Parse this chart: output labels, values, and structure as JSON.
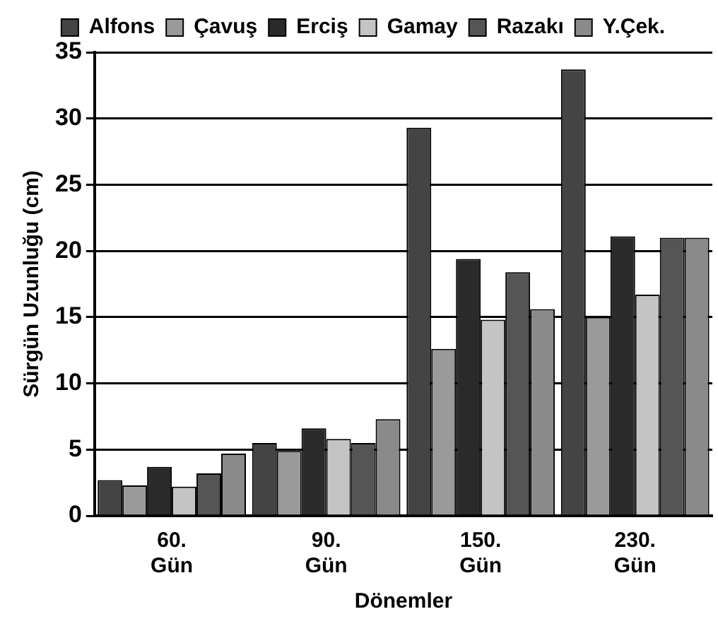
{
  "chart_data": {
    "type": "bar",
    "xlabel": "Dönemler",
    "ylabel": "Sürgün Uzunluğu (cm)",
    "categories": [
      "60. Gün",
      "90. Gün",
      "150. Gün",
      "230. Gün"
    ],
    "series": [
      {
        "name": "Alfons",
        "color": "#444444",
        "values": [
          2.7,
          5.5,
          29.3,
          33.7
        ]
      },
      {
        "name": "Çavuş",
        "color": "#9a9a9a",
        "values": [
          2.3,
          4.9,
          12.6,
          15.0
        ]
      },
      {
        "name": "Erciş",
        "color": "#2a2a2a",
        "values": [
          3.7,
          6.6,
          19.4,
          21.1
        ]
      },
      {
        "name": "Gamay",
        "color": "#c4c4c4",
        "values": [
          2.2,
          5.8,
          14.8,
          16.7
        ]
      },
      {
        "name": "Razakı",
        "color": "#555555",
        "values": [
          3.2,
          5.5,
          18.4,
          21.0
        ]
      },
      {
        "name": "Y.Çek.",
        "color": "#8a8a8a",
        "values": [
          4.7,
          7.3,
          15.6,
          21.0
        ]
      }
    ],
    "ylim": [
      0,
      35
    ],
    "yticks": [
      0,
      5,
      10,
      15,
      20,
      25,
      30,
      35
    ],
    "grid": "y",
    "legend": "top"
  }
}
